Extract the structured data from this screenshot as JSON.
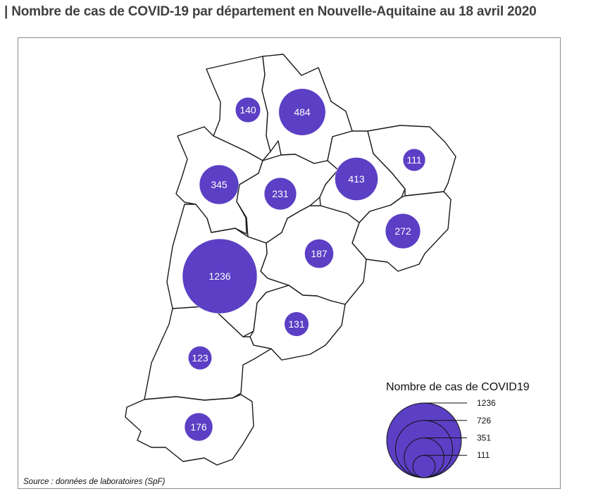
{
  "title": "| Nombre de cas de COVID-19 par département en Nouvelle-Aquitaine au 18 avril 2020",
  "bubble_color": "#5B3FC4",
  "departments": [
    {
      "name": "dept-79",
      "cases": 140
    },
    {
      "name": "dept-86",
      "cases": 484
    },
    {
      "name": "dept-17",
      "cases": 345
    },
    {
      "name": "dept-16",
      "cases": 231
    },
    {
      "name": "dept-87",
      "cases": 413
    },
    {
      "name": "dept-23",
      "cases": 111
    },
    {
      "name": "dept-19",
      "cases": 272
    },
    {
      "name": "dept-24",
      "cases": 187
    },
    {
      "name": "dept-33",
      "cases": 1236
    },
    {
      "name": "dept-47",
      "cases": 131
    },
    {
      "name": "dept-40",
      "cases": 123
    },
    {
      "name": "dept-64",
      "cases": 176
    }
  ],
  "legend": {
    "title": "Nombre de cas de COVID19",
    "values": [
      1236,
      726,
      351,
      111
    ]
  },
  "source": "Source : données de laboratoires (SpF)"
}
